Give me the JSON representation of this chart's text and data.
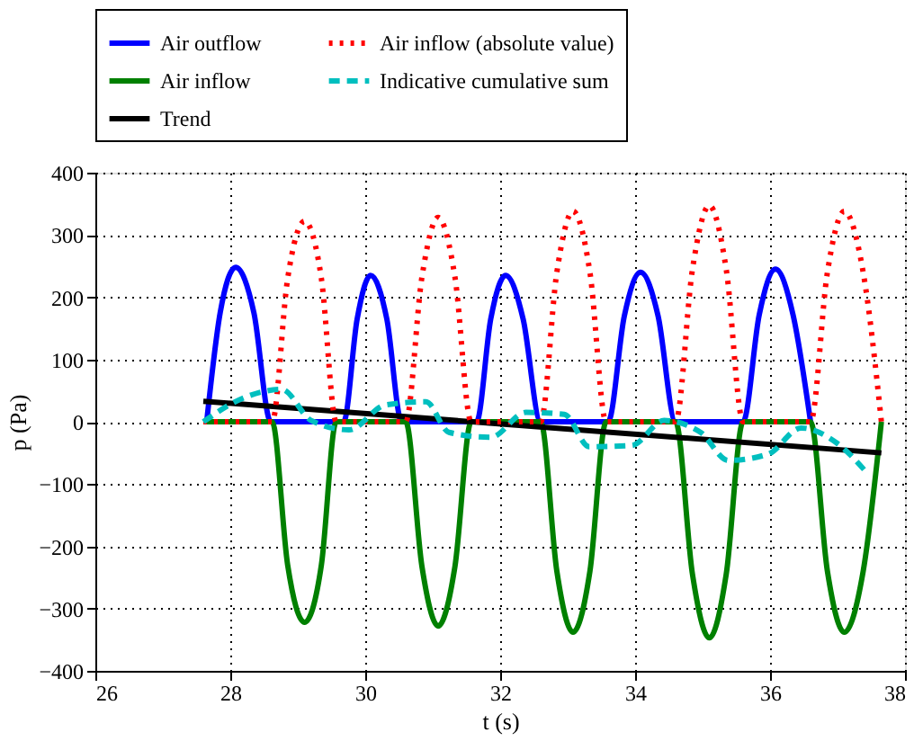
{
  "chart_data": {
    "type": "line",
    "xlabel": "t (s)",
    "ylabel": "p (Pa)",
    "xlim": [
      26,
      38
    ],
    "xticks": [
      26,
      28,
      30,
      32,
      34,
      36,
      38
    ],
    "ylim": [
      -400,
      400
    ],
    "yticks": [
      -400,
      -300,
      -200,
      -100,
      0,
      100,
      200,
      300,
      400
    ],
    "grid": true,
    "legend": "top",
    "marker": "none",
    "series": [
      {
        "name": "Air outflow",
        "color": "#0000ff",
        "line_style": "solid",
        "x": [
          27.65,
          27.85,
          28.08,
          28.35,
          28.6,
          29.68,
          29.88,
          30.08,
          30.32,
          30.54,
          31.65,
          31.86,
          32.08,
          32.34,
          32.6,
          33.6,
          33.84,
          34.08,
          34.34,
          34.6,
          35.6,
          35.84,
          36.08,
          36.34,
          36.6
        ],
        "values": [
          0,
          175,
          248,
          175,
          0,
          0,
          165,
          235,
          165,
          0,
          0,
          165,
          235,
          165,
          0,
          0,
          170,
          240,
          170,
          0,
          0,
          172,
          245,
          172,
          0
        ]
      },
      {
        "name": "Air inflow",
        "color": "#008000",
        "line_style": "solid",
        "x": [
          27.6,
          28.62,
          28.85,
          29.1,
          29.35,
          29.57,
          30.6,
          30.84,
          31.08,
          31.33,
          31.57,
          32.6,
          32.84,
          33.08,
          33.33,
          33.57,
          34.6,
          34.85,
          35.1,
          35.35,
          35.6,
          36.6,
          36.85,
          37.1,
          37.38,
          37.65
        ],
        "values": [
          0,
          0,
          -230,
          -322,
          -230,
          0,
          0,
          -232,
          -328,
          -232,
          0,
          0,
          -240,
          -338,
          -240,
          0,
          0,
          -245,
          -347,
          -245,
          0,
          0,
          -240,
          -338,
          -240,
          0
        ]
      },
      {
        "name": "Trend",
        "color": "#000000",
        "line_style": "solid",
        "x": [
          27.6,
          37.65
        ],
        "values": [
          33,
          -50
        ]
      },
      {
        "name": "Air inflow (absolute value)",
        "color": "#ff0000",
        "line_style": "dotted",
        "x": [
          27.6,
          28.62,
          28.85,
          29.1,
          29.35,
          29.57,
          30.6,
          30.84,
          31.08,
          31.33,
          31.57,
          32.6,
          32.84,
          33.08,
          33.33,
          33.57,
          34.6,
          34.85,
          35.1,
          35.35,
          35.6,
          36.6,
          36.85,
          37.1,
          37.38,
          37.65
        ],
        "values": [
          0,
          0,
          230,
          322,
          230,
          0,
          0,
          232,
          328,
          232,
          0,
          0,
          240,
          338,
          240,
          0,
          0,
          245,
          347,
          245,
          0,
          0,
          240,
          338,
          240,
          0
        ]
      },
      {
        "name": "Indicative cumulative sum",
        "color": "#00bfbf",
        "line_style": "dashed",
        "x": [
          27.6,
          28.19,
          28.76,
          29.2,
          29.76,
          30.3,
          30.9,
          31.24,
          31.86,
          32.38,
          32.95,
          33.32,
          33.95,
          34.43,
          34.97,
          35.38,
          35.97,
          36.46,
          37.0,
          37.46
        ],
        "values": [
          0,
          38,
          52,
          2,
          -13,
          27,
          32,
          -17,
          -25,
          15,
          12,
          -40,
          -38,
          2,
          -17,
          -62,
          -52,
          -10,
          -35,
          -85
        ]
      }
    ]
  }
}
